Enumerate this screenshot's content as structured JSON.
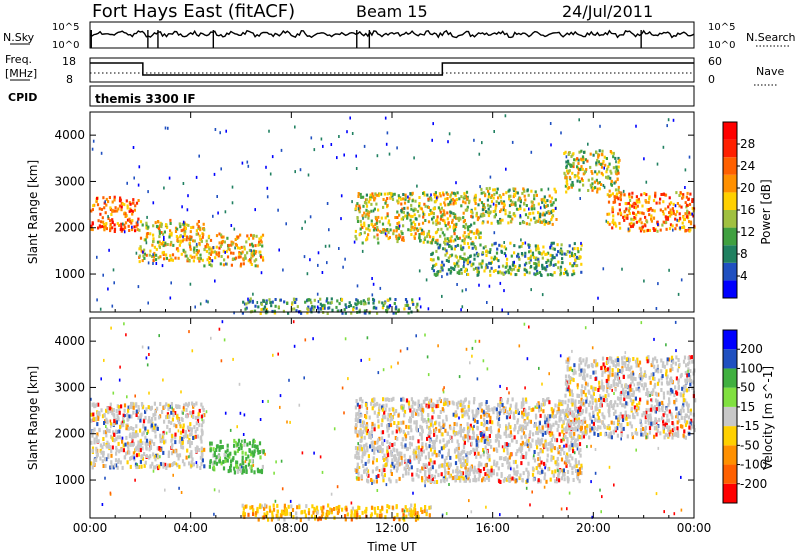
{
  "header": {
    "station": "Fort Hays East (fitACF)",
    "beam": "Beam 15",
    "date": "24/Jul/2011"
  },
  "panels": {
    "nsky_label": "N.Sky",
    "nsky_ticks": [
      "10^5",
      "10^0"
    ],
    "nsearch_label": "N.Search",
    "nsearch_ticks": [
      "10^5",
      "10^0"
    ],
    "freq_label": "Freq.",
    "freq_unit": "[MHz]",
    "freq_ticks": [
      "18",
      "8"
    ],
    "nave_label": "Nave",
    "nave_ticks": [
      "60",
      "0"
    ],
    "cpid_label": "CPID",
    "cpid_text": "themis 3300 IF"
  },
  "colors": {
    "data_line": "#000000",
    "power_scale": [
      "#0000ff",
      "#2050c0",
      "#208060",
      "#40a040",
      "#a0c040",
      "#ffd000",
      "#ff9000",
      "#ff6000",
      "#ff2000",
      "#ff0000"
    ],
    "velocity_scale": [
      "#0000ff",
      "#2050c0",
      "#40b040",
      "#80e040",
      "#c8c8c8",
      "#ffd000",
      "#ff9000",
      "#ff6000",
      "#ff0000"
    ]
  },
  "chart_data": [
    {
      "type": "heatmap",
      "name": "power",
      "ylabel": "Slant Range [km]",
      "xlabel": "",
      "x_ticks": [
        "00:00",
        "04:00",
        "08:00",
        "12:00",
        "16:00",
        "20:00",
        "00:00"
      ],
      "y_ticks": [
        "1000",
        "2000",
        "3000",
        "4000"
      ],
      "ylim": [
        180,
        4500
      ],
      "xlim_hours": [
        0,
        24
      ],
      "colorbar_label": "Power [dB]",
      "colorbar_ticks": [
        "4",
        "8",
        "12",
        "16",
        "20",
        "24",
        "28"
      ],
      "blobs": [
        {
          "t0": 0.0,
          "t1": 1.9,
          "r0": 1950,
          "r1": 2700,
          "level": 0.75
        },
        {
          "t0": 1.9,
          "t1": 4.5,
          "r0": 1300,
          "r1": 2200,
          "level": 0.55
        },
        {
          "t0": 4.5,
          "t1": 6.9,
          "r0": 1200,
          "r1": 1900,
          "level": 0.6
        },
        {
          "t0": 6.0,
          "t1": 13.0,
          "r0": 180,
          "r1": 500,
          "level": 0.3
        },
        {
          "t0": 10.5,
          "t1": 15.5,
          "r0": 1700,
          "r1": 2800,
          "level": 0.5
        },
        {
          "t0": 13.5,
          "t1": 19.5,
          "r0": 1000,
          "r1": 1700,
          "level": 0.35
        },
        {
          "t0": 15.5,
          "t1": 18.5,
          "r0": 2100,
          "r1": 2900,
          "level": 0.45
        },
        {
          "t0": 18.8,
          "t1": 21.0,
          "r0": 2800,
          "r1": 3700,
          "level": 0.5
        },
        {
          "t0": 20.5,
          "t1": 24.0,
          "r0": 1950,
          "r1": 2800,
          "level": 0.7
        }
      ]
    },
    {
      "type": "heatmap",
      "name": "velocity",
      "ylabel": "Slant Range [km]",
      "xlabel": "Time UT",
      "x_ticks": [
        "00:00",
        "04:00",
        "08:00",
        "12:00",
        "16:00",
        "20:00",
        "00:00"
      ],
      "y_ticks": [
        "1000",
        "2000",
        "3000",
        "4000"
      ],
      "ylim": [
        180,
        4500
      ],
      "xlim_hours": [
        0,
        24
      ],
      "colorbar_label": "Velocity [m s^-1]",
      "colorbar_ticks": [
        "200",
        "100",
        "50",
        "15",
        "-15",
        "-50",
        "-100",
        "-200"
      ],
      "blobs": [
        {
          "t0": 0.0,
          "t1": 4.5,
          "r0": 1300,
          "r1": 2700,
          "level": 0.5
        },
        {
          "t0": 4.7,
          "t1": 6.9,
          "r0": 1200,
          "r1": 1900,
          "level": 0.3
        },
        {
          "t0": 6.0,
          "t1": 13.5,
          "r0": 180,
          "r1": 500,
          "level": 0.65
        },
        {
          "t0": 10.5,
          "t1": 19.5,
          "r0": 1000,
          "r1": 2800,
          "level": 0.5
        },
        {
          "t0": 18.8,
          "t1": 24.0,
          "r0": 1950,
          "r1": 3700,
          "level": 0.5
        }
      ]
    }
  ]
}
